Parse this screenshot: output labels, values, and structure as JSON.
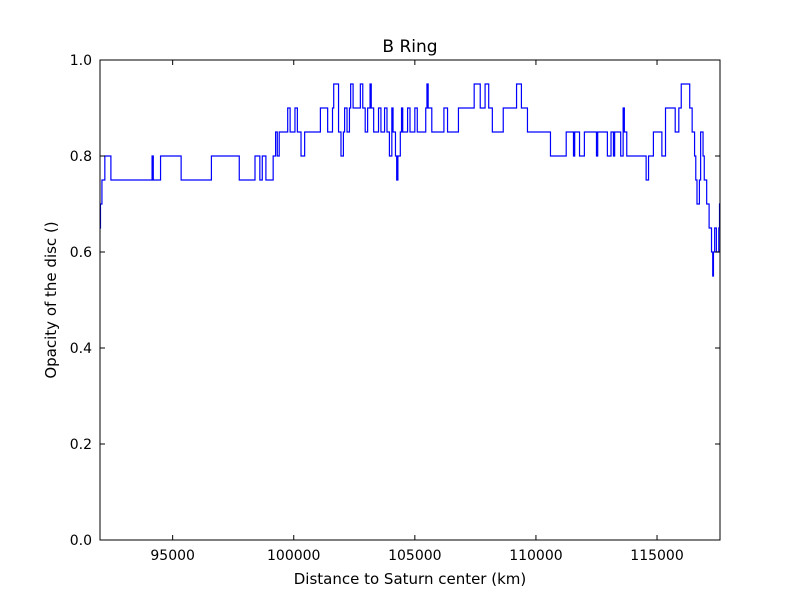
{
  "chart_data": {
    "type": "line",
    "title": "B Ring",
    "xlabel": "Distance to Saturn center (km)",
    "ylabel": "Opacity of the disc ()",
    "xlim": [
      92000,
      117600
    ],
    "ylim": [
      0.0,
      1.0
    ],
    "xticks": [
      {
        "value": 95000,
        "label": "95000"
      },
      {
        "value": 100000,
        "label": "100000"
      },
      {
        "value": 105000,
        "label": "105000"
      },
      {
        "value": 110000,
        "label": "110000"
      },
      {
        "value": 115000,
        "label": "115000"
      }
    ],
    "yticks": [
      {
        "value": 0.0,
        "label": "0.0"
      },
      {
        "value": 0.2,
        "label": "0.2"
      },
      {
        "value": 0.4,
        "label": "0.4"
      },
      {
        "value": 0.6,
        "label": "0.6"
      },
      {
        "value": 0.8,
        "label": "0.8"
      },
      {
        "value": 1.0,
        "label": "1.0"
      }
    ],
    "grid": false,
    "series": [
      {
        "color": "#0000ff",
        "step": true,
        "points": [
          [
            92000,
            0.65
          ],
          [
            92020,
            0.7
          ],
          [
            92080,
            0.75
          ],
          [
            92200,
            0.8
          ],
          [
            92450,
            0.75
          ],
          [
            94150,
            0.8
          ],
          [
            94200,
            0.75
          ],
          [
            94500,
            0.8
          ],
          [
            95350,
            0.75
          ],
          [
            96600,
            0.8
          ],
          [
            97750,
            0.75
          ],
          [
            98400,
            0.8
          ],
          [
            98600,
            0.75
          ],
          [
            98700,
            0.8
          ],
          [
            98850,
            0.75
          ],
          [
            99150,
            0.8
          ],
          [
            99250,
            0.85
          ],
          [
            99320,
            0.8
          ],
          [
            99400,
            0.85
          ],
          [
            99750,
            0.9
          ],
          [
            99850,
            0.85
          ],
          [
            100050,
            0.9
          ],
          [
            100150,
            0.85
          ],
          [
            100300,
            0.8
          ],
          [
            100450,
            0.85
          ],
          [
            101100,
            0.9
          ],
          [
            101400,
            0.85
          ],
          [
            101600,
            0.9
          ],
          [
            101650,
            0.95
          ],
          [
            101850,
            0.85
          ],
          [
            101950,
            0.8
          ],
          [
            102050,
            0.85
          ],
          [
            102100,
            0.9
          ],
          [
            102200,
            0.85
          ],
          [
            102300,
            0.9
          ],
          [
            102350,
            0.95
          ],
          [
            102450,
            0.9
          ],
          [
            102750,
            0.95
          ],
          [
            102850,
            0.9
          ],
          [
            102950,
            0.85
          ],
          [
            103050,
            0.9
          ],
          [
            103150,
            0.95
          ],
          [
            103200,
            0.9
          ],
          [
            103300,
            0.85
          ],
          [
            103500,
            0.9
          ],
          [
            103600,
            0.85
          ],
          [
            103750,
            0.9
          ],
          [
            103850,
            0.85
          ],
          [
            103950,
            0.8
          ],
          [
            104050,
            0.9
          ],
          [
            104100,
            0.85
          ],
          [
            104200,
            0.8
          ],
          [
            104250,
            0.75
          ],
          [
            104300,
            0.8
          ],
          [
            104400,
            0.85
          ],
          [
            104450,
            0.9
          ],
          [
            104500,
            0.85
          ],
          [
            104700,
            0.9
          ],
          [
            104800,
            0.85
          ],
          [
            105000,
            0.9
          ],
          [
            105100,
            0.85
          ],
          [
            105450,
            0.9
          ],
          [
            105500,
            0.95
          ],
          [
            105550,
            0.9
          ],
          [
            105700,
            0.85
          ],
          [
            106200,
            0.9
          ],
          [
            106350,
            0.85
          ],
          [
            106800,
            0.9
          ],
          [
            107450,
            0.95
          ],
          [
            107700,
            0.9
          ],
          [
            107900,
            0.95
          ],
          [
            108050,
            0.9
          ],
          [
            108200,
            0.85
          ],
          [
            108650,
            0.9
          ],
          [
            109200,
            0.95
          ],
          [
            109400,
            0.9
          ],
          [
            109650,
            0.85
          ],
          [
            110600,
            0.8
          ],
          [
            111250,
            0.85
          ],
          [
            111550,
            0.8
          ],
          [
            111600,
            0.85
          ],
          [
            111800,
            0.8
          ],
          [
            112000,
            0.85
          ],
          [
            112500,
            0.8
          ],
          [
            112550,
            0.85
          ],
          [
            112950,
            0.8
          ],
          [
            113100,
            0.85
          ],
          [
            113200,
            0.8
          ],
          [
            113250,
            0.85
          ],
          [
            113500,
            0.8
          ],
          [
            113600,
            0.9
          ],
          [
            113650,
            0.85
          ],
          [
            113750,
            0.8
          ],
          [
            114550,
            0.75
          ],
          [
            114650,
            0.8
          ],
          [
            114850,
            0.85
          ],
          [
            115200,
            0.8
          ],
          [
            115350,
            0.9
          ],
          [
            115750,
            0.85
          ],
          [
            115900,
            0.9
          ],
          [
            116000,
            0.95
          ],
          [
            116350,
            0.9
          ],
          [
            116450,
            0.85
          ],
          [
            116550,
            0.8
          ],
          [
            116600,
            0.75
          ],
          [
            116650,
            0.7
          ],
          [
            116750,
            0.75
          ],
          [
            116800,
            0.85
          ],
          [
            116900,
            0.8
          ],
          [
            116950,
            0.75
          ],
          [
            117050,
            0.7
          ],
          [
            117150,
            0.65
          ],
          [
            117250,
            0.6
          ],
          [
            117300,
            0.55
          ],
          [
            117330,
            0.6
          ],
          [
            117380,
            0.65
          ],
          [
            117450,
            0.6
          ],
          [
            117550,
            0.65
          ],
          [
            117580,
            0.7
          ],
          [
            117600,
            0.7
          ]
        ]
      }
    ]
  }
}
